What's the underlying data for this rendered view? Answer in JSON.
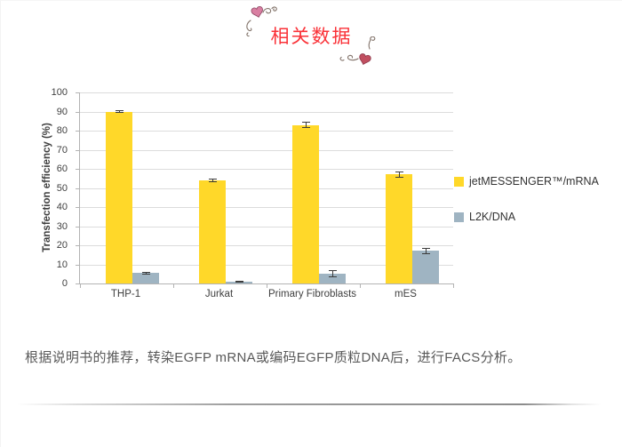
{
  "page": {
    "title": "相关数据",
    "title_color": "#fa3238",
    "footnote": "根据说明书的推荐，转染EGFP mRNA或编码EGFP质粒DNA后，进行FACS分析。"
  },
  "icons": {
    "ornament_top": "heart-flourish-icon",
    "ornament_bottom": "heart-flourish-icon"
  },
  "chart_data": {
    "type": "bar",
    "title": "",
    "categories": [
      "THP-1",
      "Jurkat",
      "Primary Fibroblasts",
      "mES"
    ],
    "series": [
      {
        "name": "jetMESSENGER™/mRNA",
        "color": "#FFD829",
        "values": [
          90,
          54,
          83,
          57
        ],
        "errors": [
          0.8,
          0.8,
          1.5,
          1.5
        ]
      },
      {
        "name": "L2K/DNA",
        "color": "#9FB4C2",
        "values": [
          5.5,
          1,
          5,
          17
        ],
        "errors": [
          0.7,
          0.5,
          1.8,
          1.8
        ]
      }
    ],
    "xlabel": "",
    "ylabel": "Transfection efficiency (%)",
    "ylim": [
      0,
      100
    ],
    "ytick_step": 10,
    "grid": true,
    "legend_position": "right",
    "axis_color": "#b3b3b3",
    "gridline_color": "#dcdcdc"
  }
}
